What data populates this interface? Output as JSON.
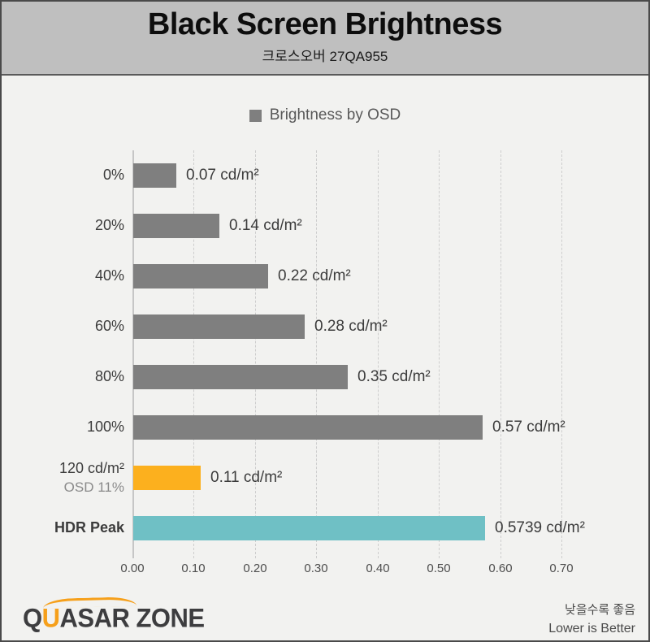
{
  "header": {
    "title": "Black Screen Brightness",
    "subtitle": "크로스오버 27QA955"
  },
  "legend": {
    "label": "Brightness by OSD",
    "swatch_color": "#7f7f7f"
  },
  "chart_data": {
    "type": "bar",
    "orientation": "horizontal",
    "title": "Black Screen Brightness",
    "subtitle": "크로스오버 27QA955",
    "legend": [
      "Brightness by OSD"
    ],
    "legend_position": "top-center",
    "unit": "cd/m²",
    "xlim": [
      0.0,
      0.7
    ],
    "x_ticks": [
      "0.00",
      "0.10",
      "0.20",
      "0.30",
      "0.40",
      "0.50",
      "0.60",
      "0.70"
    ],
    "grid": "vertical-dashed",
    "lower_is_better": true,
    "bars": [
      {
        "category": "0%",
        "sublabel": "",
        "value": 0.07,
        "value_label": "0.07 cd/m²",
        "color": "#7f7f7f",
        "bold": false
      },
      {
        "category": "20%",
        "sublabel": "",
        "value": 0.14,
        "value_label": "0.14 cd/m²",
        "color": "#7f7f7f",
        "bold": false
      },
      {
        "category": "40%",
        "sublabel": "",
        "value": 0.22,
        "value_label": "0.22 cd/m²",
        "color": "#7f7f7f",
        "bold": false
      },
      {
        "category": "60%",
        "sublabel": "",
        "value": 0.28,
        "value_label": "0.28 cd/m²",
        "color": "#7f7f7f",
        "bold": false
      },
      {
        "category": "80%",
        "sublabel": "",
        "value": 0.35,
        "value_label": "0.35 cd/m²",
        "color": "#7f7f7f",
        "bold": false
      },
      {
        "category": "100%",
        "sublabel": "",
        "value": 0.57,
        "value_label": "0.57 cd/m²",
        "color": "#7f7f7f",
        "bold": false
      },
      {
        "category": "120 cd/m²",
        "sublabel": "OSD 11%",
        "value": 0.11,
        "value_label": "0.11 cd/m²",
        "color": "#fcb01e",
        "bold": false
      },
      {
        "category": "HDR Peak",
        "sublabel": "",
        "value": 0.5739,
        "value_label": "0.5739 cd/m²",
        "color": "#6fc0c5",
        "bold": true
      }
    ]
  },
  "colors": {
    "bar_gray": "#7f7f7f",
    "bar_orange": "#fcb01e",
    "bar_teal": "#6fc0c5",
    "header_bg": "#bfbfbf",
    "body_bg": "#f2f2f0",
    "logo_orange": "#f6a01b"
  },
  "footer": {
    "logo_q": "Q",
    "logo_u": "U",
    "logo_rest": "ASAR ZONE",
    "note_ko": "낮을수록 좋음",
    "note_en": "Lower is Better"
  }
}
